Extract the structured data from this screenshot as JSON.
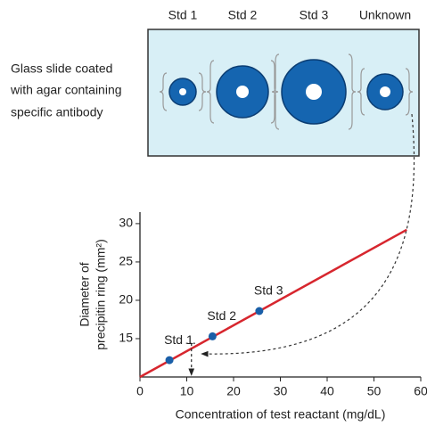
{
  "slide": {
    "label": [
      "Glass slide coated",
      "with agar containing",
      "specific antibody"
    ],
    "wells": [
      {
        "label": "Std 1"
      },
      {
        "label": "Std 2"
      },
      {
        "label": "Std 3"
      },
      {
        "label": "Unknown"
      }
    ]
  },
  "chart_data": {
    "type": "line",
    "xlabel": "Concentration of test reactant (mg/dL)",
    "ylabel": [
      "Diameter of",
      "precipitin ring (mm²)"
    ],
    "xlim": [
      0,
      60
    ],
    "ylim": [
      10,
      31.5
    ],
    "xticks": [
      0,
      10,
      20,
      30,
      40,
      50,
      60
    ],
    "yticks": [
      15,
      20,
      25,
      30
    ],
    "series": [
      {
        "color": "#d7262e",
        "x": [
          0,
          57
        ],
        "values": [
          10,
          29.2
        ]
      }
    ],
    "points": {
      "labels": [
        "Std 1",
        "Std 2",
        "Std 3"
      ],
      "x": [
        6.3,
        15.5,
        25.5
      ],
      "values": [
        12.2,
        15.3,
        18.6
      ],
      "color": "#1a5fa8"
    },
    "unknown": {
      "x": 11,
      "y": 13
    }
  }
}
